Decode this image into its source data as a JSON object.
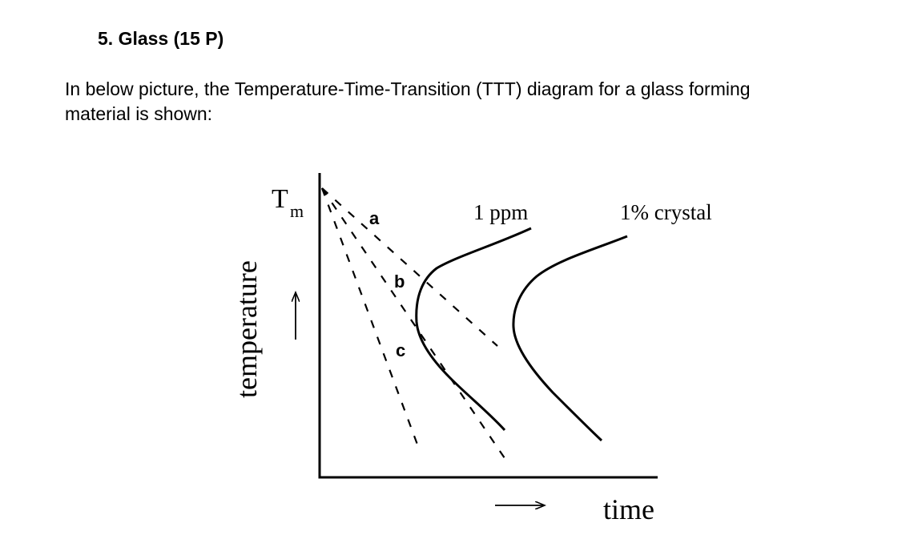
{
  "question": {
    "heading": "5.  Glass (15 P)",
    "intro_line_1": "In below picture, the Temperature-Time-Transition (TTT) diagram for a glass forming",
    "intro_line_2": "material is shown:"
  },
  "diagram": {
    "y_axis_label": "temperature",
    "x_axis_label": "time",
    "melting_point": {
      "symbol": "T",
      "subscript": "m"
    },
    "curves": [
      {
        "label": "1 ppm"
      },
      {
        "label": "1% crystal"
      }
    ],
    "cooling_paths": [
      {
        "label": "a"
      },
      {
        "label": "b"
      },
      {
        "label": "c"
      }
    ],
    "colors": {
      "ink": "#000000",
      "background": "#ffffff"
    }
  }
}
